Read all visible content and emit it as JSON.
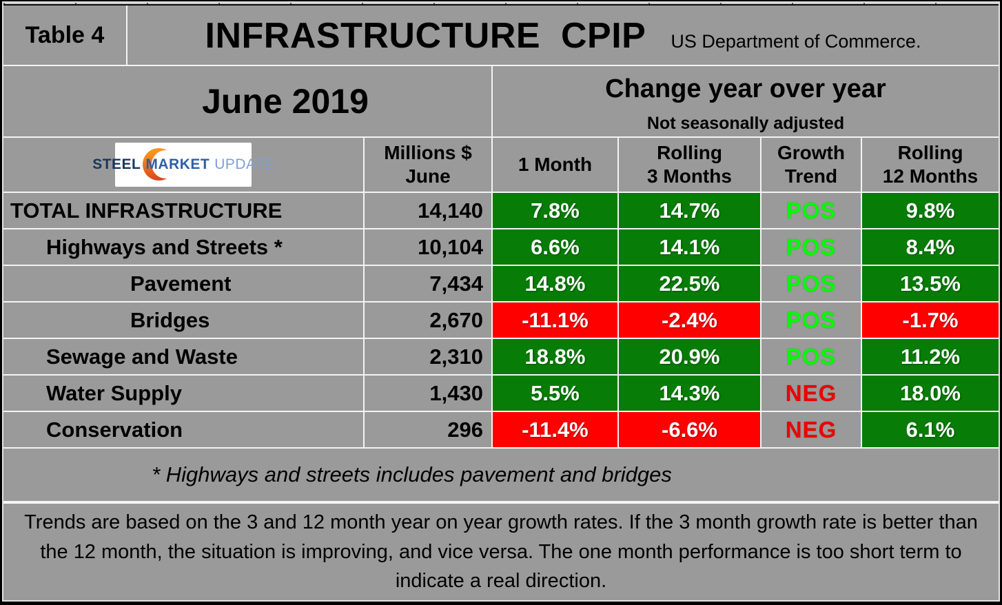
{
  "colors": {
    "background_gray": "#9A9A9A",
    "positive_cell_green": "#077C07",
    "negative_cell_red": "#FE0000",
    "pos_trend_text": "#00FE00",
    "neg_trend_text": "#EE0000",
    "gridline_white": "#F4F4F4",
    "logo_orange": "#E86A1C",
    "logo_navy": "#17365D"
  },
  "header": {
    "tag": "Table 4",
    "title": "INFRASTRUCTURE  CPIP",
    "source": "US Department of Commerce."
  },
  "subheader": {
    "period": "June 2019",
    "change_title": "Change year over year",
    "change_note": "Not seasonally adjusted"
  },
  "logo": {
    "word1": "STEEL",
    "word2": "MARKET",
    "word3": "UPDATE"
  },
  "columns": {
    "millions_line1": "Millions $",
    "millions_line2": "June",
    "one_month": "1 Month",
    "rolling3_line1": "Rolling",
    "rolling3_line2": "3 Months",
    "growth_line1": "Growth",
    "growth_line2": "Trend",
    "rolling12_line1": "Rolling",
    "rolling12_line2": "12 Months"
  },
  "rows": [
    {
      "label": "TOTAL INFRASTRUCTURE",
      "indent": 0,
      "millions": "14,140",
      "one_month": {
        "value": "7.8%",
        "sign": "pos"
      },
      "rolling_3": {
        "value": "14.7%",
        "sign": "pos"
      },
      "trend": {
        "value": "POS",
        "sign": "pos"
      },
      "rolling_12": {
        "value": "9.8%",
        "sign": "pos"
      }
    },
    {
      "label": "Highways and Streets *",
      "indent": 1,
      "millions": "10,104",
      "one_month": {
        "value": "6.6%",
        "sign": "pos"
      },
      "rolling_3": {
        "value": "14.1%",
        "sign": "pos"
      },
      "trend": {
        "value": "POS",
        "sign": "pos"
      },
      "rolling_12": {
        "value": "8.4%",
        "sign": "pos"
      }
    },
    {
      "label": "Pavement",
      "indent": 2,
      "millions": "7,434",
      "one_month": {
        "value": "14.8%",
        "sign": "pos"
      },
      "rolling_3": {
        "value": "22.5%",
        "sign": "pos"
      },
      "trend": {
        "value": "POS",
        "sign": "pos"
      },
      "rolling_12": {
        "value": "13.5%",
        "sign": "pos"
      }
    },
    {
      "label": "Bridges",
      "indent": 2,
      "millions": "2,670",
      "one_month": {
        "value": "-11.1%",
        "sign": "neg"
      },
      "rolling_3": {
        "value": "-2.4%",
        "sign": "neg"
      },
      "trend": {
        "value": "POS",
        "sign": "pos"
      },
      "rolling_12": {
        "value": "-1.7%",
        "sign": "neg"
      }
    },
    {
      "label": "Sewage and Waste",
      "indent": 1,
      "millions": "2,310",
      "one_month": {
        "value": "18.8%",
        "sign": "pos"
      },
      "rolling_3": {
        "value": "20.9%",
        "sign": "pos"
      },
      "trend": {
        "value": "POS",
        "sign": "pos"
      },
      "rolling_12": {
        "value": "11.2%",
        "sign": "pos"
      }
    },
    {
      "label": "Water Supply",
      "indent": 1,
      "millions": "1,430",
      "one_month": {
        "value": "5.5%",
        "sign": "pos"
      },
      "rolling_3": {
        "value": "14.3%",
        "sign": "pos"
      },
      "trend": {
        "value": "NEG",
        "sign": "neg"
      },
      "rolling_12": {
        "value": "18.0%",
        "sign": "pos"
      }
    },
    {
      "label": "Conservation",
      "indent": 1,
      "millions": "296",
      "one_month": {
        "value": "-11.4%",
        "sign": "neg"
      },
      "rolling_3": {
        "value": "-6.6%",
        "sign": "neg"
      },
      "trend": {
        "value": "NEG",
        "sign": "neg"
      },
      "rolling_12": {
        "value": "6.1%",
        "sign": "pos"
      }
    }
  ],
  "footnote": "* Highways and streets includes pavement and bridges",
  "note": "Trends are based on the 3 and 12 month year on year growth rates. If the 3 month growth rate is better than the 12 month, the situation is improving, and vice versa. The one month performance is too short term to indicate a real direction.",
  "chart_data": {
    "type": "table",
    "title": "INFRASTRUCTURE CPIP",
    "subtitle": "Change year over year — Not seasonally adjusted",
    "period": "June 2019",
    "source": "US Department of Commerce.",
    "columns": [
      "Millions $ June",
      "1 Month",
      "Rolling 3 Months",
      "Growth Trend",
      "Rolling 12 Months"
    ],
    "rows": [
      {
        "label": "TOTAL INFRASTRUCTURE",
        "millions_june": 14140,
        "one_month_pct": 7.8,
        "rolling_3_months_pct": 14.7,
        "growth_trend": "POS",
        "rolling_12_months_pct": 9.8
      },
      {
        "label": "Highways and Streets *",
        "millions_june": 10104,
        "one_month_pct": 6.6,
        "rolling_3_months_pct": 14.1,
        "growth_trend": "POS",
        "rolling_12_months_pct": 8.4
      },
      {
        "label": "Pavement",
        "millions_june": 7434,
        "one_month_pct": 14.8,
        "rolling_3_months_pct": 22.5,
        "growth_trend": "POS",
        "rolling_12_months_pct": 13.5
      },
      {
        "label": "Bridges",
        "millions_june": 2670,
        "one_month_pct": -11.1,
        "rolling_3_months_pct": -2.4,
        "growth_trend": "POS",
        "rolling_12_months_pct": -1.7
      },
      {
        "label": "Sewage and Waste",
        "millions_june": 2310,
        "one_month_pct": 18.8,
        "rolling_3_months_pct": 20.9,
        "growth_trend": "POS",
        "rolling_12_months_pct": 11.2
      },
      {
        "label": "Water Supply",
        "millions_june": 1430,
        "one_month_pct": 5.5,
        "rolling_3_months_pct": 14.3,
        "growth_trend": "NEG",
        "rolling_12_months_pct": 18.0
      },
      {
        "label": "Conservation",
        "millions_june": 296,
        "one_month_pct": -11.4,
        "rolling_3_months_pct": -6.6,
        "growth_trend": "NEG",
        "rolling_12_months_pct": 6.1
      }
    ]
  }
}
